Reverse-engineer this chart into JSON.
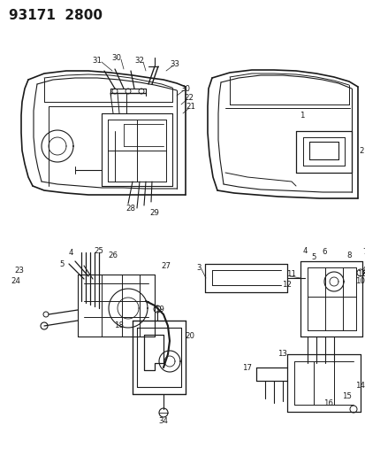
{
  "title": "93171  2800",
  "bg_color": "#ffffff",
  "line_color": "#1a1a1a",
  "fig_width": 4.14,
  "fig_height": 5.33,
  "dpi": 100,
  "title_fontsize": 11,
  "label_fontsize": 6.2
}
